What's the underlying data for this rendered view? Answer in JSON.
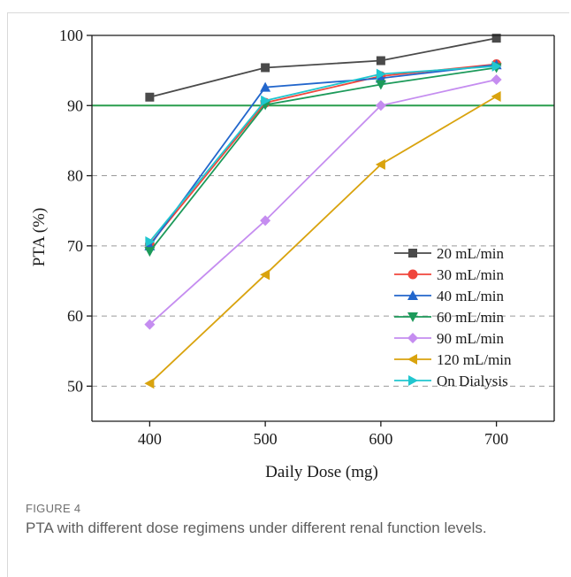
{
  "figure": {
    "label": "FIGURE 4",
    "caption": "PTA with different dose regimens under different renal function levels."
  },
  "chart_data": {
    "type": "line",
    "xlabel": "Daily Dose (mg)",
    "ylabel": "PTA (%)",
    "x": [
      400,
      500,
      600,
      700
    ],
    "xlim": [
      350,
      750
    ],
    "ylim": [
      45,
      100
    ],
    "yticks": [
      50,
      60,
      70,
      80,
      90,
      100
    ],
    "grid": "horizontal dashed",
    "reference_line": {
      "y": 90,
      "color": "#2a9d4e"
    },
    "legend_position": "lower-right",
    "series": [
      {
        "name": "20 mL/min",
        "color": "#4a4a4a",
        "marker": "square",
        "values": [
          91.2,
          95.4,
          96.4,
          99.6
        ]
      },
      {
        "name": "30 mL/min",
        "color": "#f0463c",
        "marker": "circle",
        "values": [
          70.2,
          90.4,
          94.2,
          95.9
        ]
      },
      {
        "name": "40 mL/min",
        "color": "#2266cc",
        "marker": "triangle-up",
        "values": [
          70.0,
          92.6,
          93.9,
          95.8
        ]
      },
      {
        "name": "60 mL/min",
        "color": "#1c9a5a",
        "marker": "triangle-down",
        "values": [
          69.2,
          90.1,
          93.0,
          95.4
        ]
      },
      {
        "name": "90 mL/min",
        "color": "#c58df0",
        "marker": "diamond",
        "values": [
          58.8,
          73.6,
          90.0,
          93.7
        ]
      },
      {
        "name": "120 mL/min",
        "color": "#d9a30e",
        "marker": "triangle-left",
        "values": [
          50.4,
          65.9,
          81.6,
          91.3
        ]
      },
      {
        "name": "On Dialysis",
        "color": "#21c6cf",
        "marker": "triangle-right",
        "values": [
          70.6,
          90.7,
          94.5,
          95.6
        ]
      }
    ]
  }
}
